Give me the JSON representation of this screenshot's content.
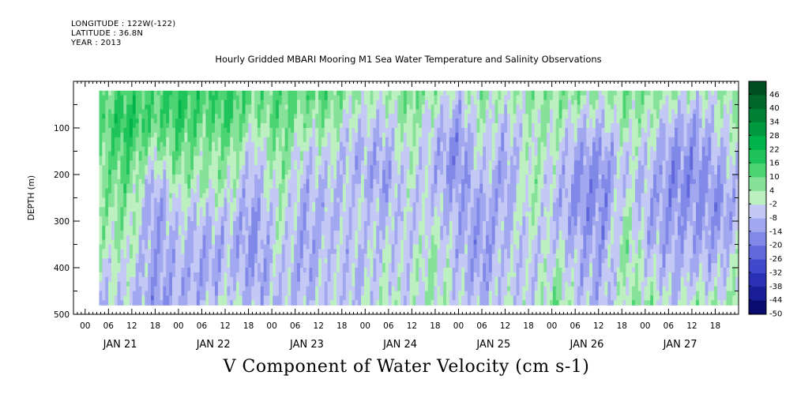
{
  "header": {
    "longitude": "LONGITUDE : 122W(-122)",
    "latitude": "LATITUDE : 36.8N",
    "year": "YEAR : 2013"
  },
  "title": "Hourly Gridded MBARI Mooring M1 Sea Water Temperature and Salinity Observations",
  "bottom_title": "V Component of Water Velocity (cm s-1)",
  "chart_data": {
    "type": "heatmap",
    "title": "Hourly Gridded MBARI Mooring M1 Sea Water Temperature and Salinity Observations",
    "variable": "V Component of Water Velocity (cm s-1)",
    "ylabel": "DEPTH (m)",
    "ylim": [
      500,
      0
    ],
    "y_inverted": true,
    "y_ticks": [
      100,
      200,
      300,
      400,
      500
    ],
    "x_hour_ticks": [
      "00",
      "06",
      "12",
      "18",
      "00",
      "06",
      "12",
      "18",
      "00",
      "06",
      "12",
      "18",
      "00",
      "06",
      "12",
      "18",
      "00",
      "06",
      "12",
      "18",
      "00",
      "06",
      "12",
      "18",
      "00",
      "06",
      "12",
      "18"
    ],
    "x_days": [
      "JAN 21",
      "JAN 22",
      "JAN 23",
      "JAN 24",
      "JAN 25",
      "JAN 26",
      "JAN 27"
    ],
    "data_time_range_days": [
      0.15,
      7.0
    ],
    "data_depth_range_m": [
      20,
      480
    ],
    "colorbar": {
      "levels": [
        48,
        46,
        40,
        34,
        28,
        22,
        16,
        10,
        4,
        -2,
        -8,
        -14,
        -20,
        -26,
        -32,
        -38,
        -44,
        -50
      ],
      "label_values": [
        "46",
        "40",
        "34",
        "28",
        "22",
        "16",
        "10",
        "4",
        "-2",
        "-8",
        "-14",
        "-20",
        "-26",
        "-32",
        "-38",
        "-44",
        "-50"
      ],
      "colors": [
        "#004d1f",
        "#00662a",
        "#008035",
        "#009940",
        "#00b34a",
        "#1ec45a",
        "#4cd472",
        "#86e298",
        "#bdf0c0",
        "#c4c8f4",
        "#a2a8f0",
        "#8088e8",
        "#6068dc",
        "#4048cc",
        "#2a30b4",
        "#1a1e96",
        "#0a0c70"
      ]
    },
    "pattern_columns": [
      {
        "t": 0.15,
        "v": [
          6,
          10,
          8,
          6,
          4,
          2,
          -4,
          -6
        ]
      },
      {
        "t": 0.45,
        "v": [
          14,
          20,
          14,
          10,
          6,
          2,
          -2,
          -4
        ]
      },
      {
        "t": 0.75,
        "v": [
          12,
          12,
          2,
          -10,
          -14,
          -12,
          -12,
          -14
        ]
      },
      {
        "t": 1.0,
        "v": [
          18,
          16,
          10,
          4,
          -4,
          -6,
          -8,
          -10
        ]
      },
      {
        "t": 1.3,
        "v": [
          14,
          10,
          4,
          4,
          -6,
          -10,
          -12,
          -6
        ]
      },
      {
        "t": 1.55,
        "v": [
          16,
          14,
          8,
          2,
          -4,
          -8,
          -6,
          -2
        ]
      },
      {
        "t": 1.8,
        "v": [
          10,
          4,
          -6,
          -10,
          -14,
          -14,
          -12,
          -8
        ]
      },
      {
        "t": 2.1,
        "v": [
          12,
          10,
          8,
          4,
          2,
          -2,
          -4,
          -6
        ]
      },
      {
        "t": 2.35,
        "v": [
          10,
          4,
          -4,
          -8,
          -10,
          -12,
          -10,
          -6
        ]
      },
      {
        "t": 2.6,
        "v": [
          12,
          6,
          -2,
          -6,
          -8,
          -6,
          -4,
          -4
        ]
      },
      {
        "t": 2.9,
        "v": [
          4,
          -4,
          -8,
          -6,
          -4,
          -6,
          -8,
          -6
        ]
      },
      {
        "t": 3.2,
        "v": [
          2,
          -6,
          -10,
          -12,
          -8,
          -4,
          -2,
          2
        ]
      },
      {
        "t": 3.45,
        "v": [
          10,
          6,
          2,
          -2,
          -4,
          -6,
          -4,
          -4
        ]
      },
      {
        "t": 3.7,
        "v": [
          6,
          -2,
          -6,
          -6,
          -4,
          2,
          4,
          2
        ]
      },
      {
        "t": 4.0,
        "v": [
          -4,
          -12,
          -16,
          -14,
          -10,
          -8,
          -6,
          -4
        ]
      },
      {
        "t": 4.25,
        "v": [
          6,
          2,
          -2,
          -6,
          -12,
          -14,
          -12,
          -8
        ]
      },
      {
        "t": 4.5,
        "v": [
          2,
          -6,
          -10,
          -12,
          -8,
          -6,
          -4,
          -2
        ]
      },
      {
        "t": 4.8,
        "v": [
          4,
          2,
          2,
          4,
          2,
          -4,
          -6,
          -4
        ]
      },
      {
        "t": 5.05,
        "v": [
          6,
          4,
          -2,
          -6,
          -8,
          -4,
          4,
          8
        ]
      },
      {
        "t": 5.3,
        "v": [
          8,
          -4,
          -12,
          -14,
          -14,
          -10,
          -8,
          -6
        ]
      },
      {
        "t": 5.55,
        "v": [
          2,
          -6,
          -12,
          -16,
          -14,
          -12,
          -10,
          -8
        ]
      },
      {
        "t": 5.8,
        "v": [
          8,
          4,
          -2,
          -4,
          2,
          6,
          4,
          2
        ]
      },
      {
        "t": 6.05,
        "v": [
          6,
          2,
          -4,
          -8,
          -10,
          -8,
          -4,
          6
        ]
      },
      {
        "t": 6.3,
        "v": [
          4,
          -8,
          -14,
          -16,
          -14,
          -10,
          -8,
          -6
        ]
      },
      {
        "t": 6.55,
        "v": [
          -2,
          -10,
          -14,
          -16,
          -12,
          -10,
          -6,
          4
        ]
      },
      {
        "t": 6.8,
        "v": [
          2,
          -2,
          -8,
          -12,
          -14,
          -10,
          -6,
          2
        ]
      },
      {
        "t": 7.0,
        "v": [
          6,
          2,
          -2,
          -4,
          -6,
          -4,
          2,
          4
        ]
      }
    ]
  }
}
